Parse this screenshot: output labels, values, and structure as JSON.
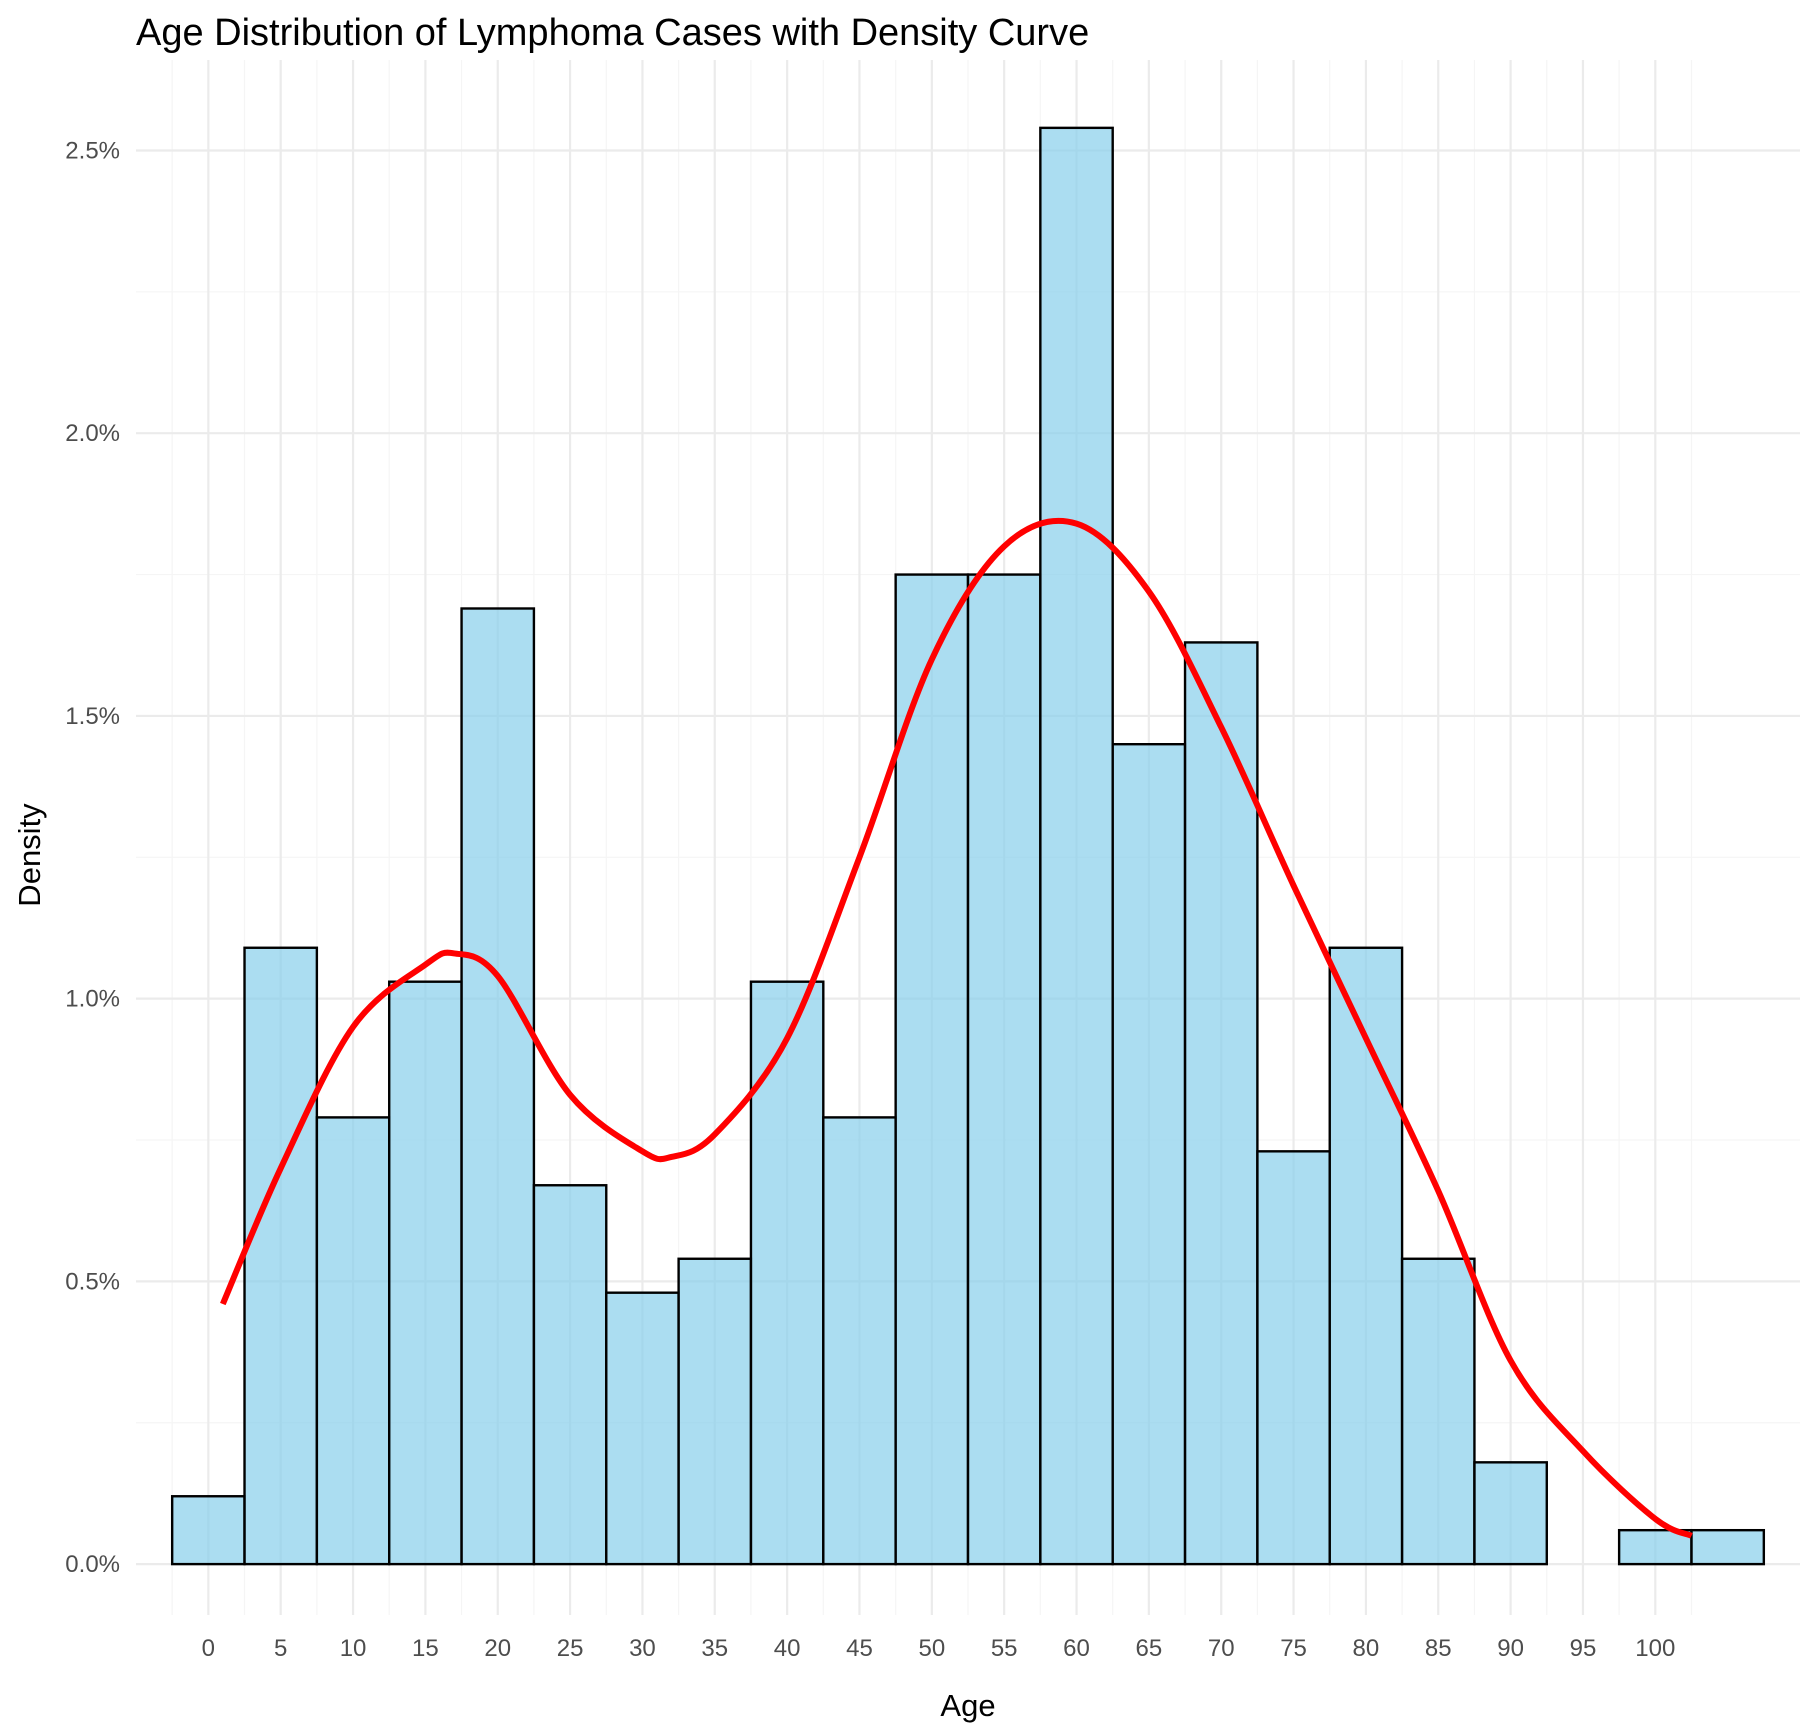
{
  "chart_data": {
    "type": "bar",
    "title": "Age Distribution of Lymphoma Cases with Density Curve",
    "xlabel": "Age",
    "ylabel": "Density",
    "bin_width": 5,
    "bin_centers": [
      0,
      5,
      10,
      15,
      20,
      25,
      30,
      35,
      40,
      45,
      50,
      55,
      60,
      65,
      70,
      75,
      80,
      85,
      90,
      95,
      100,
      105
    ],
    "values": [
      0.0012,
      0.0109,
      0.0079,
      0.0103,
      0.0169,
      0.0067,
      0.0048,
      0.0054,
      0.0103,
      0.0079,
      0.0175,
      0.0175,
      0.0254,
      0.0145,
      0.0163,
      0.0073,
      0.0109,
      0.0054,
      0.0018,
      0.0,
      0.0006,
      0.0006
    ],
    "density_curve": {
      "x": [
        1,
        5,
        10,
        15,
        17,
        20,
        25,
        30,
        32,
        35,
        40,
        45,
        50,
        55,
        60,
        65,
        70,
        75,
        80,
        85,
        90,
        95,
        100,
        102.5
      ],
      "y": [
        0.0046,
        0.007,
        0.0095,
        0.0106,
        0.0108,
        0.0104,
        0.0083,
        0.0073,
        0.0072,
        0.0076,
        0.0093,
        0.0125,
        0.016,
        0.018,
        0.0184,
        0.0172,
        0.0148,
        0.012,
        0.0093,
        0.0066,
        0.0036,
        0.002,
        0.0008,
        0.0005
      ]
    },
    "x_ticks": [
      "0",
      "5",
      "10",
      "15",
      "20",
      "25",
      "30",
      "35",
      "40",
      "45",
      "50",
      "55",
      "60",
      "65",
      "70",
      "75",
      "80",
      "85",
      "90",
      "95",
      "100"
    ],
    "y_ticks": [
      "0.0%",
      "0.5%",
      "1.0%",
      "1.5%",
      "2.0%",
      "2.5%"
    ],
    "xlim": [
      -5,
      110
    ],
    "ylim": [
      -0.0009,
      0.0266
    ],
    "grid": true,
    "colors": {
      "bar_fill": "#87ceeb",
      "bar_outline": "#000000",
      "density_line": "#ff0000"
    }
  }
}
